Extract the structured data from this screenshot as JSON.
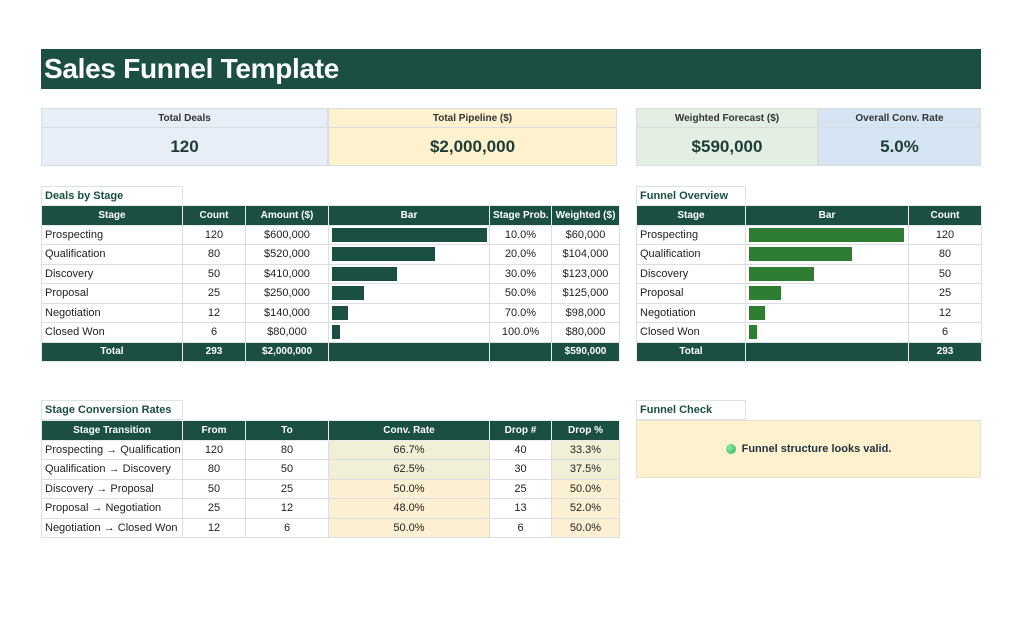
{
  "title": "Sales Funnel Template",
  "colors": {
    "header": "#1b4f43",
    "bar_deals": "#1b4f43",
    "bar_funnel": "#2e7d32"
  },
  "kpis": [
    {
      "label": "Total Deals",
      "value": "120",
      "bg": "#e8eef8"
    },
    {
      "label": "Total Pipeline ($)",
      "value": "$2,000,000",
      "bg": "#fdf2cd"
    },
    {
      "label": "Weighted Forecast ($)",
      "value": "$590,000",
      "bg": "#e3efe3"
    },
    {
      "label": "Overall Conv. Rate",
      "value": "5.0%",
      "bg": "#d5e5f3"
    }
  ],
  "deals_by_stage": {
    "label": "Deals by Stage",
    "headers": [
      "Stage",
      "Count",
      "Amount ($)",
      "Bar",
      "Stage Prob.",
      "Weighted ($)"
    ],
    "rows": [
      {
        "stage": "Prospecting",
        "count": "120",
        "amount": "$600,000",
        "bar": 1.0,
        "prob": "10.0%",
        "weighted": "$60,000"
      },
      {
        "stage": "Qualification",
        "count": "80",
        "amount": "$520,000",
        "bar": 0.667,
        "prob": "20.0%",
        "weighted": "$104,000"
      },
      {
        "stage": "Discovery",
        "count": "50",
        "amount": "$410,000",
        "bar": 0.417,
        "prob": "30.0%",
        "weighted": "$123,000"
      },
      {
        "stage": "Proposal",
        "count": "25",
        "amount": "$250,000",
        "bar": 0.208,
        "prob": "50.0%",
        "weighted": "$125,000"
      },
      {
        "stage": "Negotiation",
        "count": "12",
        "amount": "$140,000",
        "bar": 0.1,
        "prob": "70.0%",
        "weighted": "$98,000"
      },
      {
        "stage": "Closed Won",
        "count": "6",
        "amount": "$80,000",
        "bar": 0.05,
        "prob": "100.0%",
        "weighted": "$80,000"
      }
    ],
    "total": {
      "label": "Total",
      "count": "293",
      "amount": "$2,000,000",
      "weighted": "$590,000"
    }
  },
  "funnel_overview": {
    "label": "Funnel Overview",
    "headers": [
      "Stage",
      "Bar",
      "Count"
    ],
    "rows": [
      {
        "stage": "Prospecting",
        "bar": 1.0,
        "count": "120"
      },
      {
        "stage": "Qualification",
        "bar": 0.667,
        "count": "80"
      },
      {
        "stage": "Discovery",
        "bar": 0.417,
        "count": "50"
      },
      {
        "stage": "Proposal",
        "bar": 0.208,
        "count": "25"
      },
      {
        "stage": "Negotiation",
        "bar": 0.1,
        "count": "12"
      },
      {
        "stage": "Closed Won",
        "bar": 0.05,
        "count": "6"
      }
    ],
    "total": {
      "label": "Total",
      "count": "293"
    }
  },
  "conversion": {
    "label": "Stage Conversion Rates",
    "headers": [
      "Stage Transition",
      "From",
      "To",
      "Conv. Rate",
      "Drop #",
      "Drop %"
    ],
    "rows": [
      {
        "transition": "Prospecting → Qualification",
        "from": "120",
        "to": "80",
        "rate": "66.7%",
        "drop": "40",
        "drop_pct": "33.3%",
        "shade": "#f1efd6"
      },
      {
        "transition": "Qualification → Discovery",
        "from": "80",
        "to": "50",
        "rate": "62.5%",
        "drop": "30",
        "drop_pct": "37.5%",
        "shade": "#f1efd6"
      },
      {
        "transition": "Discovery → Proposal",
        "from": "50",
        "to": "25",
        "rate": "50.0%",
        "drop": "25",
        "drop_pct": "50.0%",
        "shade": "#fdf0d2"
      },
      {
        "transition": "Proposal → Negotiation",
        "from": "25",
        "to": "12",
        "rate": "48.0%",
        "drop": "13",
        "drop_pct": "52.0%",
        "shade": "#fdf0d2"
      },
      {
        "transition": "Negotiation → Closed Won",
        "from": "12",
        "to": "6",
        "rate": "50.0%",
        "drop": "6",
        "drop_pct": "50.0%",
        "shade": "#fdf0d2"
      }
    ]
  },
  "funnel_check": {
    "label": "Funnel Check",
    "message": "Funnel structure looks valid.",
    "status_icon": "green-dot-icon"
  }
}
